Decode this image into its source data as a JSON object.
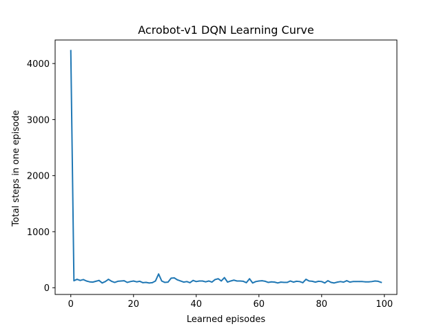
{
  "chart_data": {
    "type": "line",
    "title": "Acrobot-v1 DQN Learning Curve",
    "xlabel": "Learned episodes",
    "ylabel": "Total steps in one episode",
    "xlim": [
      -5,
      104
    ],
    "ylim": [
      -120,
      4420
    ],
    "xticks": [
      0,
      20,
      40,
      60,
      80,
      100
    ],
    "yticks": [
      0,
      1000,
      2000,
      3000,
      4000
    ],
    "grid": false,
    "line_color": "#1f77b4",
    "series": [
      {
        "x": [
          0,
          1,
          2,
          3,
          4,
          5,
          6,
          7,
          8,
          9,
          10,
          11,
          12,
          13,
          14,
          15,
          16,
          17,
          18,
          19,
          20,
          21,
          22,
          23,
          24,
          25,
          26,
          27,
          28,
          29,
          30,
          31,
          32,
          33,
          34,
          35,
          36,
          37,
          38,
          39,
          40,
          41,
          42,
          43,
          44,
          45,
          46,
          47,
          48,
          49,
          50,
          51,
          52,
          53,
          54,
          55,
          56,
          57,
          58,
          59,
          60,
          61,
          62,
          63,
          64,
          65,
          66,
          67,
          68,
          69,
          70,
          71,
          72,
          73,
          74,
          75,
          76,
          77,
          78,
          79,
          80,
          81,
          82,
          83,
          84,
          85,
          86,
          87,
          88,
          89,
          90,
          91,
          92,
          93,
          94,
          95,
          96,
          97,
          98,
          99
        ],
        "values": [
          4230,
          125,
          150,
          130,
          145,
          120,
          105,
          100,
          115,
          130,
          85,
          110,
          150,
          115,
          95,
          115,
          120,
          125,
          95,
          110,
          120,
          105,
          115,
          90,
          95,
          85,
          90,
          120,
          245,
          120,
          95,
          100,
          170,
          175,
          140,
          120,
          100,
          110,
          90,
          130,
          110,
          120,
          120,
          105,
          120,
          100,
          145,
          160,
          120,
          180,
          100,
          120,
          135,
          120,
          120,
          115,
          90,
          160,
          85,
          110,
          120,
          125,
          115,
          95,
          105,
          100,
          85,
          100,
          95,
          95,
          120,
          100,
          115,
          110,
          90,
          150,
          120,
          115,
          100,
          115,
          110,
          85,
          125,
          95,
          85,
          100,
          110,
          100,
          125,
          100,
          110,
          110,
          110,
          110,
          105,
          105,
          110,
          120,
          115,
          95
        ]
      }
    ]
  }
}
